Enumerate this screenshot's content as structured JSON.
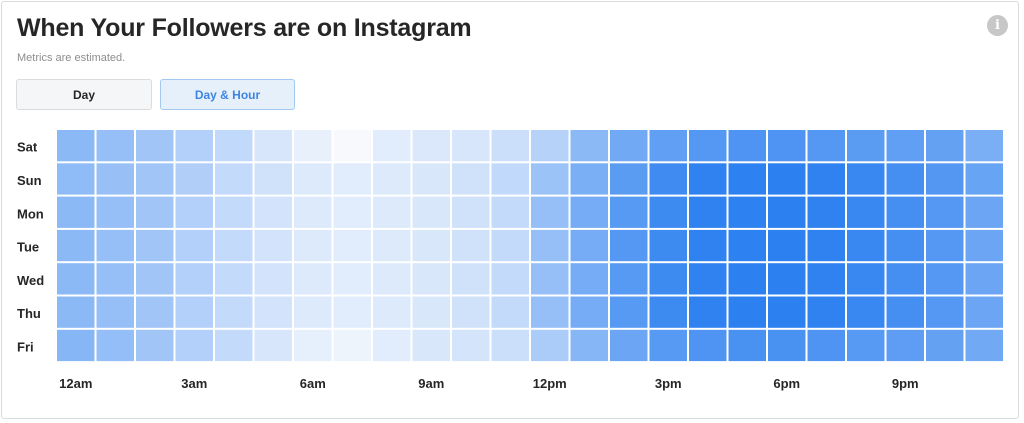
{
  "header": {
    "title": "When Your Followers are on Instagram",
    "subtitle": "Metrics are estimated.",
    "info_icon": "info-icon"
  },
  "tabs": [
    {
      "label": "Day",
      "active": false
    },
    {
      "label": "Day & Hour",
      "active": true
    }
  ],
  "colors": {
    "low": "#f7f9fd",
    "high": "#1f78ef",
    "active_tab_text": "#3f85e0",
    "active_tab_bg": "#e6f0fb"
  },
  "chart_data": {
    "type": "heatmap",
    "title": "When Your Followers are on Instagram",
    "subtitle": "Metrics are estimated.",
    "rows": [
      "Sat",
      "Sun",
      "Mon",
      "Tue",
      "Wed",
      "Thu",
      "Fri"
    ],
    "x_tick_labels": [
      "12am",
      "3am",
      "6am",
      "9am",
      "12pm",
      "3pm",
      "6pm",
      "9pm"
    ],
    "x_tick_every": 3,
    "hours": 24,
    "value_scale": [
      0,
      1
    ],
    "values": [
      [
        0.5,
        0.45,
        0.4,
        0.32,
        0.25,
        0.15,
        0.07,
        0.0,
        0.1,
        0.13,
        0.15,
        0.2,
        0.3,
        0.5,
        0.62,
        0.7,
        0.75,
        0.78,
        0.78,
        0.75,
        0.72,
        0.7,
        0.68,
        0.58
      ],
      [
        0.48,
        0.44,
        0.4,
        0.33,
        0.24,
        0.18,
        0.12,
        0.1,
        0.12,
        0.14,
        0.18,
        0.25,
        0.42,
        0.58,
        0.72,
        0.85,
        0.92,
        0.93,
        0.94,
        0.92,
        0.88,
        0.82,
        0.76,
        0.66
      ],
      [
        0.5,
        0.45,
        0.4,
        0.32,
        0.24,
        0.17,
        0.12,
        0.1,
        0.12,
        0.14,
        0.18,
        0.24,
        0.45,
        0.6,
        0.74,
        0.86,
        0.92,
        0.93,
        0.94,
        0.92,
        0.88,
        0.82,
        0.75,
        0.65
      ],
      [
        0.5,
        0.45,
        0.4,
        0.32,
        0.24,
        0.17,
        0.12,
        0.1,
        0.12,
        0.14,
        0.18,
        0.24,
        0.45,
        0.6,
        0.75,
        0.86,
        0.92,
        0.93,
        0.94,
        0.92,
        0.88,
        0.82,
        0.75,
        0.65
      ],
      [
        0.5,
        0.45,
        0.4,
        0.32,
        0.24,
        0.17,
        0.12,
        0.1,
        0.12,
        0.14,
        0.18,
        0.24,
        0.45,
        0.6,
        0.74,
        0.86,
        0.92,
        0.94,
        0.94,
        0.92,
        0.88,
        0.82,
        0.75,
        0.65
      ],
      [
        0.5,
        0.45,
        0.4,
        0.32,
        0.24,
        0.17,
        0.12,
        0.1,
        0.12,
        0.14,
        0.18,
        0.24,
        0.45,
        0.6,
        0.74,
        0.86,
        0.92,
        0.94,
        0.94,
        0.92,
        0.88,
        0.82,
        0.75,
        0.65
      ],
      [
        0.52,
        0.46,
        0.4,
        0.32,
        0.24,
        0.15,
        0.08,
        0.04,
        0.1,
        0.14,
        0.16,
        0.2,
        0.35,
        0.52,
        0.65,
        0.74,
        0.78,
        0.8,
        0.8,
        0.78,
        0.74,
        0.71,
        0.68,
        0.62
      ]
    ]
  }
}
